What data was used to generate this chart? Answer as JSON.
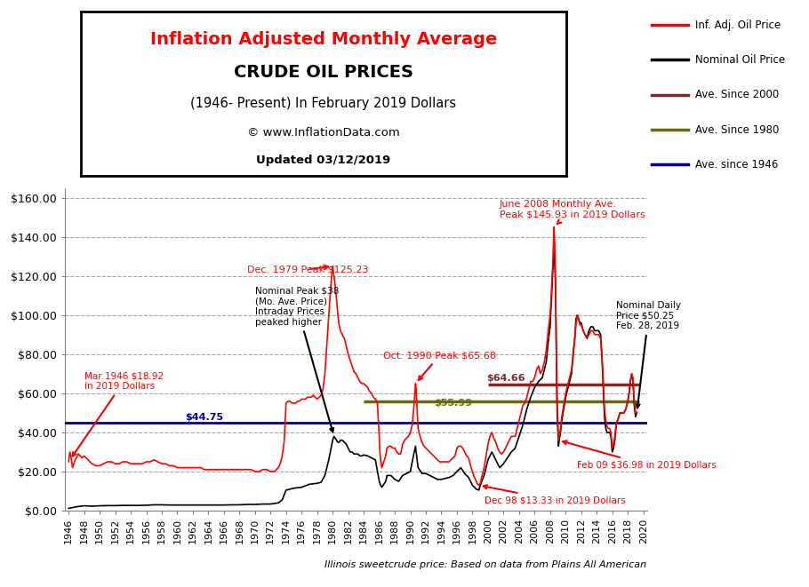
{
  "title_line1": "Inflation Adjusted Monthly Average",
  "title_line2": "CRUDE OIL PRICES",
  "title_line3": "(1946- Present) In February 2019 Dollars",
  "title_line4": "© www.InflationData.com",
  "title_line5": "Updated 03/12/2019",
  "footer": "Illinois sweetcrude price: Based on data from Plains All American",
  "ave_since_1946": 44.75,
  "ave_since_1980": 55.99,
  "ave_since_2000": 64.66,
  "legend_entries": [
    "Inf. Adj. Oil Price",
    "Nominal Oil Price",
    "Ave. Since 2000",
    "Ave. Since 1980",
    "Ave. since 1946"
  ],
  "legend_colors": [
    "#FF0000",
    "#000000",
    "#7B2C2C",
    "#6B6B00",
    "#00008B"
  ],
  "inf_adj_color": "#FF0000",
  "nominal_color": "#000000",
  "ave2000_color": "#7B2C2C",
  "ave1980_color": "#6B6B00",
  "ave1946_color": "#00008B",
  "background_color": "#FFFFFF",
  "grid_color": "#808080",
  "ylim": [
    0,
    165
  ],
  "yticks": [
    0,
    20,
    40,
    60,
    80,
    100,
    120,
    140,
    160
  ],
  "ytick_labels": [
    "$0.00",
    "$20.00",
    "$40.00",
    "$60.00",
    "$80.00",
    "$100.00",
    "$120.00",
    "$140.00",
    "$160.00"
  ],
  "inf_adj_data": [
    [
      1946.0,
      25.0
    ],
    [
      1946.17,
      30.0
    ],
    [
      1946.33,
      27.0
    ],
    [
      1946.5,
      22.0
    ],
    [
      1946.67,
      24.0
    ],
    [
      1946.83,
      26.0
    ],
    [
      1947.0,
      27.0
    ],
    [
      1947.25,
      29.0
    ],
    [
      1947.5,
      28.0
    ],
    [
      1947.75,
      27.0
    ],
    [
      1948.0,
      28.0
    ],
    [
      1948.5,
      26.0
    ],
    [
      1949.0,
      24.0
    ],
    [
      1949.5,
      23.0
    ],
    [
      1950.0,
      23.0
    ],
    [
      1950.5,
      24.0
    ],
    [
      1951.0,
      25.0
    ],
    [
      1951.5,
      25.0
    ],
    [
      1952.0,
      24.0
    ],
    [
      1952.5,
      24.0
    ],
    [
      1953.0,
      25.0
    ],
    [
      1953.5,
      25.0
    ],
    [
      1954.0,
      24.0
    ],
    [
      1954.5,
      24.0
    ],
    [
      1955.0,
      24.0
    ],
    [
      1955.5,
      24.0
    ],
    [
      1956.0,
      25.0
    ],
    [
      1956.5,
      25.0
    ],
    [
      1957.0,
      26.0
    ],
    [
      1957.5,
      25.0
    ],
    [
      1958.0,
      24.0
    ],
    [
      1958.5,
      24.0
    ],
    [
      1959.0,
      23.0
    ],
    [
      1959.5,
      23.0
    ],
    [
      1960.0,
      22.0
    ],
    [
      1960.5,
      22.0
    ],
    [
      1961.0,
      22.0
    ],
    [
      1961.5,
      22.0
    ],
    [
      1962.0,
      22.0
    ],
    [
      1962.5,
      22.0
    ],
    [
      1963.0,
      22.0
    ],
    [
      1963.5,
      21.0
    ],
    [
      1964.0,
      21.0
    ],
    [
      1964.5,
      21.0
    ],
    [
      1965.0,
      21.0
    ],
    [
      1965.5,
      21.0
    ],
    [
      1966.0,
      21.0
    ],
    [
      1966.5,
      21.0
    ],
    [
      1967.0,
      21.0
    ],
    [
      1967.5,
      21.0
    ],
    [
      1968.0,
      21.0
    ],
    [
      1968.5,
      21.0
    ],
    [
      1969.0,
      21.0
    ],
    [
      1969.5,
      21.0
    ],
    [
      1970.0,
      20.0
    ],
    [
      1970.5,
      20.0
    ],
    [
      1971.0,
      21.0
    ],
    [
      1971.5,
      21.0
    ],
    [
      1972.0,
      20.0
    ],
    [
      1972.5,
      20.0
    ],
    [
      1973.0,
      22.0
    ],
    [
      1973.25,
      24.0
    ],
    [
      1973.5,
      28.0
    ],
    [
      1973.75,
      35.0
    ],
    [
      1974.0,
      55.0
    ],
    [
      1974.25,
      56.0
    ],
    [
      1974.5,
      56.0
    ],
    [
      1974.75,
      55.0
    ],
    [
      1975.0,
      55.0
    ],
    [
      1975.25,
      55.0
    ],
    [
      1975.5,
      56.0
    ],
    [
      1975.75,
      56.0
    ],
    [
      1976.0,
      57.0
    ],
    [
      1976.25,
      57.0
    ],
    [
      1976.5,
      57.0
    ],
    [
      1976.75,
      58.0
    ],
    [
      1977.0,
      58.0
    ],
    [
      1977.25,
      58.0
    ],
    [
      1977.5,
      59.0
    ],
    [
      1977.75,
      58.0
    ],
    [
      1978.0,
      57.0
    ],
    [
      1978.25,
      58.0
    ],
    [
      1978.5,
      59.0
    ],
    [
      1978.75,
      62.0
    ],
    [
      1979.0,
      70.0
    ],
    [
      1979.17,
      80.0
    ],
    [
      1979.33,
      90.0
    ],
    [
      1979.5,
      100.0
    ],
    [
      1979.67,
      110.0
    ],
    [
      1979.83,
      118.0
    ],
    [
      1980.0,
      125.0
    ],
    [
      1980.17,
      120.0
    ],
    [
      1980.33,
      115.0
    ],
    [
      1980.5,
      108.0
    ],
    [
      1980.67,
      100.0
    ],
    [
      1980.83,
      95.0
    ],
    [
      1981.0,
      92.0
    ],
    [
      1981.25,
      90.0
    ],
    [
      1981.5,
      88.0
    ],
    [
      1981.75,
      84.0
    ],
    [
      1982.0,
      80.0
    ],
    [
      1982.25,
      77.0
    ],
    [
      1982.5,
      74.0
    ],
    [
      1982.75,
      71.0
    ],
    [
      1983.0,
      70.0
    ],
    [
      1983.25,
      68.0
    ],
    [
      1983.5,
      66.0
    ],
    [
      1983.75,
      65.0
    ],
    [
      1984.0,
      65.0
    ],
    [
      1984.25,
      64.0
    ],
    [
      1984.5,
      63.0
    ],
    [
      1984.75,
      61.0
    ],
    [
      1985.0,
      60.0
    ],
    [
      1985.25,
      58.0
    ],
    [
      1985.5,
      57.0
    ],
    [
      1985.75,
      55.0
    ],
    [
      1986.0,
      38.0
    ],
    [
      1986.08,
      30.0
    ],
    [
      1986.17,
      26.0
    ],
    [
      1986.25,
      24.0
    ],
    [
      1986.33,
      22.0
    ],
    [
      1986.5,
      24.0
    ],
    [
      1986.67,
      26.0
    ],
    [
      1986.83,
      28.0
    ],
    [
      1987.0,
      32.0
    ],
    [
      1987.25,
      33.0
    ],
    [
      1987.5,
      33.0
    ],
    [
      1987.75,
      32.0
    ],
    [
      1988.0,
      32.0
    ],
    [
      1988.25,
      30.0
    ],
    [
      1988.5,
      29.0
    ],
    [
      1988.75,
      29.0
    ],
    [
      1989.0,
      34.0
    ],
    [
      1989.25,
      36.0
    ],
    [
      1989.5,
      37.0
    ],
    [
      1989.75,
      38.0
    ],
    [
      1990.0,
      40.0
    ],
    [
      1990.25,
      44.0
    ],
    [
      1990.5,
      55.0
    ],
    [
      1990.67,
      65.0
    ],
    [
      1990.75,
      62.0
    ],
    [
      1990.83,
      55.0
    ],
    [
      1991.0,
      42.0
    ],
    [
      1991.25,
      38.0
    ],
    [
      1991.5,
      35.0
    ],
    [
      1991.75,
      33.0
    ],
    [
      1992.0,
      32.0
    ],
    [
      1992.25,
      31.0
    ],
    [
      1992.5,
      30.0
    ],
    [
      1992.75,
      29.0
    ],
    [
      1993.0,
      28.0
    ],
    [
      1993.25,
      27.0
    ],
    [
      1993.5,
      26.0
    ],
    [
      1993.75,
      25.0
    ],
    [
      1994.0,
      25.0
    ],
    [
      1994.25,
      25.0
    ],
    [
      1994.5,
      25.0
    ],
    [
      1994.75,
      25.0
    ],
    [
      1995.0,
      25.0
    ],
    [
      1995.25,
      26.0
    ],
    [
      1995.5,
      27.0
    ],
    [
      1995.75,
      28.0
    ],
    [
      1996.0,
      32.0
    ],
    [
      1996.25,
      33.0
    ],
    [
      1996.5,
      33.0
    ],
    [
      1996.75,
      32.0
    ],
    [
      1997.0,
      30.0
    ],
    [
      1997.25,
      28.0
    ],
    [
      1997.5,
      27.0
    ],
    [
      1997.75,
      23.0
    ],
    [
      1998.0,
      20.0
    ],
    [
      1998.25,
      17.0
    ],
    [
      1998.5,
      15.0
    ],
    [
      1998.67,
      13.5
    ],
    [
      1998.83,
      13.0
    ],
    [
      1999.0,
      14.0
    ],
    [
      1999.25,
      18.0
    ],
    [
      1999.5,
      22.0
    ],
    [
      1999.75,
      28.0
    ],
    [
      2000.0,
      34.0
    ],
    [
      2000.25,
      38.0
    ],
    [
      2000.5,
      40.0
    ],
    [
      2000.75,
      37.0
    ],
    [
      2001.0,
      35.0
    ],
    [
      2001.25,
      32.0
    ],
    [
      2001.5,
      30.0
    ],
    [
      2001.75,
      29.0
    ],
    [
      2002.0,
      30.0
    ],
    [
      2002.25,
      32.0
    ],
    [
      2002.5,
      34.0
    ],
    [
      2002.75,
      36.0
    ],
    [
      2003.0,
      38.0
    ],
    [
      2003.25,
      38.0
    ],
    [
      2003.5,
      38.0
    ],
    [
      2003.75,
      42.0
    ],
    [
      2004.0,
      46.0
    ],
    [
      2004.25,
      50.0
    ],
    [
      2004.5,
      54.0
    ],
    [
      2004.75,
      55.0
    ],
    [
      2005.0,
      58.0
    ],
    [
      2005.25,
      62.0
    ],
    [
      2005.5,
      66.0
    ],
    [
      2005.75,
      66.0
    ],
    [
      2006.0,
      68.0
    ],
    [
      2006.25,
      72.0
    ],
    [
      2006.5,
      74.0
    ],
    [
      2006.75,
      70.0
    ],
    [
      2007.0,
      72.0
    ],
    [
      2007.25,
      76.0
    ],
    [
      2007.5,
      82.0
    ],
    [
      2007.75,
      92.0
    ],
    [
      2008.0,
      100.0
    ],
    [
      2008.17,
      112.0
    ],
    [
      2008.33,
      125.0
    ],
    [
      2008.5,
      145.0
    ],
    [
      2008.58,
      138.0
    ],
    [
      2008.67,
      125.0
    ],
    [
      2008.75,
      100.0
    ],
    [
      2008.83,
      72.0
    ],
    [
      2008.92,
      55.0
    ],
    [
      2009.0,
      46.0
    ],
    [
      2009.08,
      36.0
    ],
    [
      2009.17,
      38.0
    ],
    [
      2009.33,
      42.0
    ],
    [
      2009.5,
      48.0
    ],
    [
      2009.67,
      52.0
    ],
    [
      2009.83,
      56.0
    ],
    [
      2010.0,
      60.0
    ],
    [
      2010.25,
      64.0
    ],
    [
      2010.5,
      68.0
    ],
    [
      2010.75,
      72.0
    ],
    [
      2011.0,
      80.0
    ],
    [
      2011.17,
      88.0
    ],
    [
      2011.33,
      95.0
    ],
    [
      2011.5,
      100.0
    ],
    [
      2011.67,
      98.0
    ],
    [
      2011.83,
      95.0
    ],
    [
      2012.0,
      95.0
    ],
    [
      2012.25,
      92.0
    ],
    [
      2012.5,
      90.0
    ],
    [
      2012.75,
      88.0
    ],
    [
      2013.0,
      90.0
    ],
    [
      2013.25,
      92.0
    ],
    [
      2013.5,
      92.0
    ],
    [
      2013.75,
      90.0
    ],
    [
      2014.0,
      90.0
    ],
    [
      2014.25,
      90.0
    ],
    [
      2014.5,
      88.0
    ],
    [
      2014.67,
      80.0
    ],
    [
      2014.83,
      68.0
    ],
    [
      2015.0,
      52.0
    ],
    [
      2015.17,
      46.0
    ],
    [
      2015.33,
      43.0
    ],
    [
      2015.5,
      42.0
    ],
    [
      2015.67,
      42.0
    ],
    [
      2015.83,
      40.0
    ],
    [
      2016.0,
      32.0
    ],
    [
      2016.17,
      34.0
    ],
    [
      2016.33,
      38.0
    ],
    [
      2016.5,
      44.0
    ],
    [
      2016.67,
      46.0
    ],
    [
      2016.83,
      48.0
    ],
    [
      2017.0,
      50.0
    ],
    [
      2017.25,
      50.0
    ],
    [
      2017.5,
      50.0
    ],
    [
      2017.75,
      52.0
    ],
    [
      2018.0,
      56.0
    ],
    [
      2018.17,
      60.0
    ],
    [
      2018.33,
      66.0
    ],
    [
      2018.5,
      70.0
    ],
    [
      2018.67,
      68.0
    ],
    [
      2018.83,
      56.0
    ],
    [
      2019.0,
      50.0
    ],
    [
      2019.17,
      50.0
    ]
  ],
  "nominal_data": [
    [
      1946.0,
      1.2
    ],
    [
      1947.0,
      2.0
    ],
    [
      1948.0,
      2.5
    ],
    [
      1949.0,
      2.3
    ],
    [
      1950.0,
      2.5
    ],
    [
      1951.0,
      2.6
    ],
    [
      1952.0,
      2.6
    ],
    [
      1953.0,
      2.7
    ],
    [
      1954.0,
      2.7
    ],
    [
      1955.0,
      2.7
    ],
    [
      1956.0,
      2.8
    ],
    [
      1957.0,
      3.0
    ],
    [
      1958.0,
      3.0
    ],
    [
      1959.0,
      2.9
    ],
    [
      1960.0,
      2.9
    ],
    [
      1961.0,
      2.9
    ],
    [
      1962.0,
      2.9
    ],
    [
      1963.0,
      2.9
    ],
    [
      1964.0,
      2.9
    ],
    [
      1965.0,
      2.9
    ],
    [
      1966.0,
      2.9
    ],
    [
      1967.0,
      3.0
    ],
    [
      1968.0,
      3.0
    ],
    [
      1969.0,
      3.2
    ],
    [
      1970.0,
      3.2
    ],
    [
      1971.0,
      3.4
    ],
    [
      1972.0,
      3.4
    ],
    [
      1973.0,
      4.0
    ],
    [
      1973.5,
      5.5
    ],
    [
      1974.0,
      10.5
    ],
    [
      1974.5,
      11.0
    ],
    [
      1975.0,
      11.5
    ],
    [
      1976.0,
      12.0
    ],
    [
      1977.0,
      13.5
    ],
    [
      1978.0,
      14.0
    ],
    [
      1978.5,
      14.5
    ],
    [
      1979.0,
      18.0
    ],
    [
      1979.5,
      26.0
    ],
    [
      1980.0,
      36.0
    ],
    [
      1980.17,
      38.0
    ],
    [
      1980.33,
      37.0
    ],
    [
      1980.5,
      36.0
    ],
    [
      1980.67,
      35.0
    ],
    [
      1980.83,
      35.0
    ],
    [
      1981.0,
      36.0
    ],
    [
      1981.25,
      36.0
    ],
    [
      1981.5,
      35.0
    ],
    [
      1981.75,
      34.0
    ],
    [
      1982.0,
      32.0
    ],
    [
      1982.25,
      30.0
    ],
    [
      1982.5,
      30.0
    ],
    [
      1982.75,
      29.0
    ],
    [
      1983.0,
      29.0
    ],
    [
      1983.25,
      29.0
    ],
    [
      1983.5,
      28.0
    ],
    [
      1983.75,
      28.0
    ],
    [
      1984.0,
      28.5
    ],
    [
      1984.5,
      28.0
    ],
    [
      1985.0,
      27.0
    ],
    [
      1985.5,
      26.0
    ],
    [
      1986.0,
      15.0
    ],
    [
      1986.17,
      13.0
    ],
    [
      1986.33,
      12.0
    ],
    [
      1986.5,
      13.0
    ],
    [
      1986.67,
      14.0
    ],
    [
      1986.83,
      15.0
    ],
    [
      1987.0,
      18.0
    ],
    [
      1987.5,
      18.0
    ],
    [
      1988.0,
      16.0
    ],
    [
      1988.5,
      15.0
    ],
    [
      1989.0,
      18.0
    ],
    [
      1989.5,
      19.0
    ],
    [
      1990.0,
      20.0
    ],
    [
      1990.5,
      30.0
    ],
    [
      1990.67,
      33.0
    ],
    [
      1990.75,
      30.0
    ],
    [
      1991.0,
      22.0
    ],
    [
      1991.5,
      19.0
    ],
    [
      1992.0,
      19.0
    ],
    [
      1992.5,
      18.0
    ],
    [
      1993.0,
      17.0
    ],
    [
      1993.5,
      16.0
    ],
    [
      1994.0,
      16.0
    ],
    [
      1994.5,
      16.5
    ],
    [
      1995.0,
      17.0
    ],
    [
      1995.5,
      18.0
    ],
    [
      1996.0,
      20.0
    ],
    [
      1996.5,
      22.0
    ],
    [
      1997.0,
      19.0
    ],
    [
      1997.5,
      17.0
    ],
    [
      1998.0,
      13.0
    ],
    [
      1998.5,
      11.0
    ],
    [
      1998.83,
      10.5
    ],
    [
      1999.0,
      13.0
    ],
    [
      1999.5,
      18.0
    ],
    [
      2000.0,
      26.0
    ],
    [
      2000.5,
      30.0
    ],
    [
      2001.0,
      26.0
    ],
    [
      2001.5,
      22.0
    ],
    [
      2002.0,
      24.0
    ],
    [
      2002.5,
      27.0
    ],
    [
      2003.0,
      30.0
    ],
    [
      2003.5,
      32.0
    ],
    [
      2004.0,
      38.0
    ],
    [
      2004.5,
      44.0
    ],
    [
      2005.0,
      52.0
    ],
    [
      2005.5,
      58.0
    ],
    [
      2006.0,
      63.0
    ],
    [
      2006.5,
      66.0
    ],
    [
      2007.0,
      68.0
    ],
    [
      2007.5,
      76.0
    ],
    [
      2007.75,
      86.0
    ],
    [
      2008.0,
      94.0
    ],
    [
      2008.17,
      108.0
    ],
    [
      2008.33,
      122.0
    ],
    [
      2008.5,
      133.0
    ],
    [
      2008.58,
      128.0
    ],
    [
      2008.67,
      118.0
    ],
    [
      2008.75,
      98.0
    ],
    [
      2008.83,
      68.0
    ],
    [
      2008.92,
      48.0
    ],
    [
      2009.0,
      40.0
    ],
    [
      2009.08,
      33.0
    ],
    [
      2009.17,
      36.0
    ],
    [
      2009.33,
      40.0
    ],
    [
      2009.5,
      46.0
    ],
    [
      2009.67,
      50.0
    ],
    [
      2009.83,
      54.0
    ],
    [
      2010.0,
      58.0
    ],
    [
      2010.25,
      62.0
    ],
    [
      2010.5,
      66.0
    ],
    [
      2010.75,
      70.0
    ],
    [
      2011.0,
      82.0
    ],
    [
      2011.17,
      88.0
    ],
    [
      2011.33,
      98.0
    ],
    [
      2011.5,
      100.0
    ],
    [
      2011.67,
      98.0
    ],
    [
      2011.83,
      96.0
    ],
    [
      2012.0,
      96.0
    ],
    [
      2012.25,
      92.0
    ],
    [
      2012.5,
      90.0
    ],
    [
      2012.75,
      88.0
    ],
    [
      2013.0,
      92.0
    ],
    [
      2013.25,
      94.0
    ],
    [
      2013.5,
      94.0
    ],
    [
      2013.75,
      92.0
    ],
    [
      2014.0,
      92.0
    ],
    [
      2014.25,
      92.0
    ],
    [
      2014.5,
      90.0
    ],
    [
      2014.67,
      78.0
    ],
    [
      2014.83,
      64.0
    ],
    [
      2015.0,
      48.0
    ],
    [
      2015.17,
      42.0
    ],
    [
      2015.33,
      40.0
    ],
    [
      2015.5,
      40.0
    ],
    [
      2015.67,
      40.0
    ],
    [
      2015.83,
      38.0
    ],
    [
      2016.0,
      30.0
    ],
    [
      2016.17,
      32.0
    ],
    [
      2016.33,
      36.0
    ],
    [
      2016.5,
      44.0
    ],
    [
      2016.67,
      46.0
    ],
    [
      2016.83,
      48.0
    ],
    [
      2017.0,
      50.0
    ],
    [
      2017.25,
      50.0
    ],
    [
      2017.5,
      50.0
    ],
    [
      2017.75,
      52.0
    ],
    [
      2018.0,
      56.0
    ],
    [
      2018.17,
      60.0
    ],
    [
      2018.33,
      66.0
    ],
    [
      2018.5,
      70.0
    ],
    [
      2018.67,
      66.0
    ],
    [
      2018.83,
      54.0
    ],
    [
      2019.0,
      48.0
    ],
    [
      2019.17,
      50.25
    ]
  ]
}
